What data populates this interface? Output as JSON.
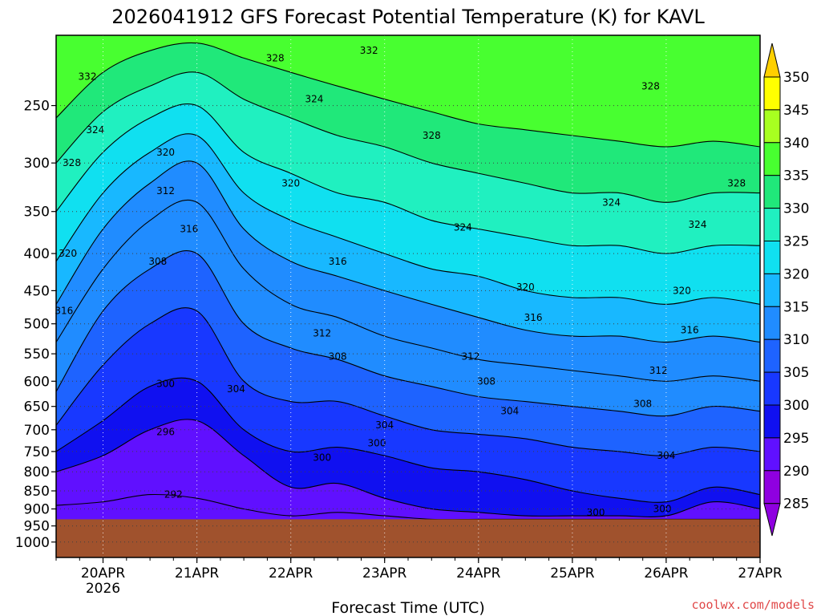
{
  "chart_data": {
    "type": "heatmap",
    "title": "2026041912 GFS Forecast Potential Temperature (K) for KAVL",
    "xlabel": "Forecast Time (UTC)",
    "ylabel": "",
    "credit": "coolwx.com/models",
    "x_ticks": [
      {
        "label": "20APR",
        "sub": "2026",
        "hour": 12
      },
      {
        "label": "21APR",
        "sub": "",
        "hour": 36
      },
      {
        "label": "22APR",
        "sub": "",
        "hour": 60
      },
      {
        "label": "23APR",
        "sub": "",
        "hour": 84
      },
      {
        "label": "24APR",
        "sub": "",
        "hour": 108
      },
      {
        "label": "25APR",
        "sub": "",
        "hour": 132
      },
      {
        "label": "26APR",
        "sub": "",
        "hour": 156
      },
      {
        "label": "27APR",
        "sub": "",
        "hour": 180
      }
    ],
    "xlim": [
      0,
      180
    ],
    "y_ticks": [
      "250",
      "300",
      "350",
      "400",
      "450",
      "500",
      "550",
      "600",
      "650",
      "700",
      "750",
      "800",
      "850",
      "900",
      "950",
      "1000"
    ],
    "y_ticks_values": [
      250,
      300,
      350,
      400,
      450,
      500,
      550,
      600,
      650,
      700,
      750,
      800,
      850,
      900,
      950,
      1000
    ],
    "ylim": [
      200,
      1050
    ],
    "y_scale": "log-pressure (inverted)",
    "ground_level_hpa": 930,
    "colorbar": {
      "levels": [
        285,
        290,
        295,
        300,
        305,
        310,
        315,
        320,
        325,
        330,
        335,
        340,
        345,
        350
      ],
      "labels": [
        "285",
        "290",
        "295",
        "300",
        "305",
        "310",
        "315",
        "320",
        "325",
        "330",
        "335",
        "340",
        "345",
        "350"
      ],
      "extend": "both"
    },
    "series": [
      {
        "level": 292,
        "pressures": [
          890,
          880,
          860,
          870,
          900,
          920,
          910,
          920,
          930,
          930,
          930,
          930,
          930,
          930,
          930,
          930
        ]
      },
      {
        "level": 296,
        "pressures": [
          800,
          760,
          700,
          680,
          760,
          840,
          830,
          870,
          900,
          910,
          920,
          920,
          920,
          920,
          880,
          900
        ]
      },
      {
        "level": 300,
        "pressures": [
          750,
          680,
          610,
          600,
          700,
          750,
          740,
          760,
          790,
          800,
          820,
          850,
          870,
          880,
          840,
          860
        ]
      },
      {
        "level": 304,
        "pressures": [
          690,
          570,
          500,
          480,
          600,
          640,
          640,
          670,
          700,
          710,
          720,
          740,
          750,
          760,
          740,
          750
        ]
      },
      {
        "level": 308,
        "pressures": [
          620,
          480,
          420,
          400,
          500,
          540,
          560,
          590,
          610,
          630,
          640,
          650,
          660,
          670,
          650,
          660
        ]
      },
      {
        "level": 312,
        "pressures": [
          530,
          420,
          360,
          340,
          420,
          470,
          490,
          520,
          540,
          560,
          570,
          580,
          590,
          600,
          590,
          600
        ]
      },
      {
        "level": 316,
        "pressures": [
          470,
          370,
          320,
          300,
          370,
          410,
          430,
          450,
          470,
          490,
          510,
          520,
          520,
          530,
          520,
          530
        ]
      },
      {
        "level": 320,
        "pressures": [
          410,
          330,
          290,
          275,
          330,
          360,
          380,
          400,
          420,
          430,
          450,
          460,
          460,
          470,
          460,
          470
        ]
      },
      {
        "level": 324,
        "pressures": [
          350,
          290,
          260,
          250,
          290,
          310,
          330,
          340,
          360,
          370,
          380,
          390,
          390,
          400,
          390,
          390
        ]
      },
      {
        "level": 328,
        "pressures": [
          300,
          255,
          235,
          225,
          245,
          260,
          275,
          285,
          300,
          310,
          320,
          330,
          330,
          340,
          330,
          330
        ]
      },
      {
        "level": 332,
        "pressures": [
          260,
          225,
          210,
          205,
          215,
          225,
          235,
          245,
          255,
          265,
          270,
          275,
          280,
          285,
          280,
          285
        ]
      }
    ],
    "series_hours": [
      0,
      12,
      24,
      36,
      48,
      60,
      72,
      84,
      96,
      108,
      120,
      132,
      144,
      156,
      168,
      180
    ],
    "contour_labels": [
      {
        "text": "332",
        "hour": 8,
        "hpa": 228
      },
      {
        "text": "332",
        "hour": 80,
        "hpa": 210
      },
      {
        "text": "328",
        "hour": 56,
        "hpa": 215
      },
      {
        "text": "328",
        "hour": 152,
        "hpa": 235
      },
      {
        "text": "328",
        "hour": 4,
        "hpa": 300
      },
      {
        "text": "328",
        "hour": 96,
        "hpa": 275
      },
      {
        "text": "328",
        "hour": 174,
        "hpa": 320
      },
      {
        "text": "324",
        "hour": 10,
        "hpa": 270
      },
      {
        "text": "324",
        "hour": 66,
        "hpa": 245
      },
      {
        "text": "324",
        "hour": 104,
        "hpa": 368
      },
      {
        "text": "324",
        "hour": 142,
        "hpa": 340
      },
      {
        "text": "324",
        "hour": 164,
        "hpa": 365
      },
      {
        "text": "320",
        "hour": 28,
        "hpa": 290
      },
      {
        "text": "320",
        "hour": 60,
        "hpa": 320
      },
      {
        "text": "320",
        "hour": 120,
        "hpa": 445
      },
      {
        "text": "320",
        "hour": 160,
        "hpa": 450
      },
      {
        "text": "320",
        "hour": 3,
        "hpa": 400
      },
      {
        "text": "316",
        "hour": 34,
        "hpa": 370
      },
      {
        "text": "316",
        "hour": 72,
        "hpa": 410
      },
      {
        "text": "316",
        "hour": 2,
        "hpa": 480
      },
      {
        "text": "316",
        "hour": 122,
        "hpa": 490
      },
      {
        "text": "316",
        "hour": 162,
        "hpa": 510
      },
      {
        "text": "312",
        "hour": 28,
        "hpa": 328
      },
      {
        "text": "312",
        "hour": 68,
        "hpa": 515
      },
      {
        "text": "312",
        "hour": 106,
        "hpa": 555
      },
      {
        "text": "312",
        "hour": 154,
        "hpa": 580
      },
      {
        "text": "308",
        "hour": 26,
        "hpa": 410
      },
      {
        "text": "308",
        "hour": 72,
        "hpa": 555
      },
      {
        "text": "308",
        "hour": 110,
        "hpa": 600
      },
      {
        "text": "308",
        "hour": 150,
        "hpa": 645
      },
      {
        "text": "304",
        "hour": 46,
        "hpa": 615
      },
      {
        "text": "304",
        "hour": 84,
        "hpa": 690
      },
      {
        "text": "304",
        "hour": 116,
        "hpa": 660
      },
      {
        "text": "304",
        "hour": 156,
        "hpa": 760
      },
      {
        "text": "300",
        "hour": 28,
        "hpa": 605
      },
      {
        "text": "300",
        "hour": 82,
        "hpa": 730
      },
      {
        "text": "300",
        "hour": 68,
        "hpa": 765
      },
      {
        "text": "300",
        "hour": 138,
        "hpa": 910
      },
      {
        "text": "300",
        "hour": 155,
        "hpa": 900
      },
      {
        "text": "296",
        "hour": 28,
        "hpa": 705
      },
      {
        "text": "292",
        "hour": 30,
        "hpa": 860
      }
    ]
  }
}
